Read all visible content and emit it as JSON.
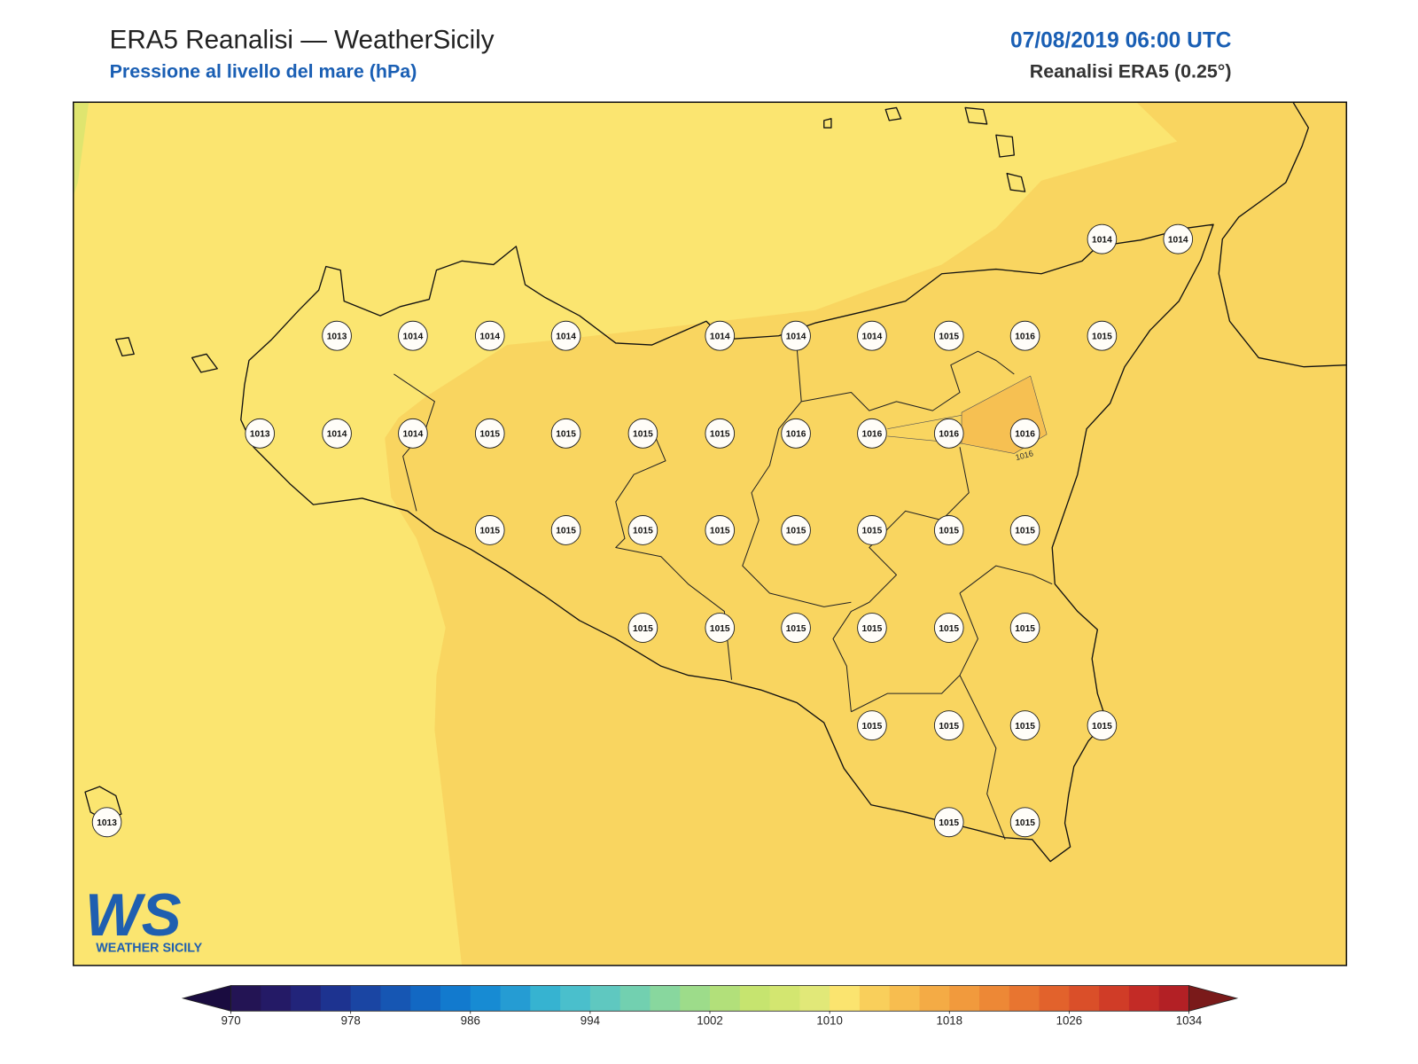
{
  "header": {
    "title": "ERA5 Reanalisi — WeatherSicily",
    "subtitle": "Pressione al livello del mare (hPa)",
    "datetime": "07/08/2019 06:00 UTC",
    "source": "Reanalisi ERA5 (0.25°)"
  },
  "stations": [
    1014,
    1014,
    1013,
    1014,
    1014,
    1014,
    1014,
    1014,
    1014,
    1015,
    1016,
    1015,
    1013,
    1014,
    1014,
    1015,
    1015,
    1015,
    1015,
    1016,
    1016,
    1016,
    1016,
    1015,
    1015,
    1015,
    1015,
    1015,
    1015,
    1015,
    1015,
    1015,
    1015,
    1015,
    1015,
    1015,
    1015,
    1015,
    1015,
    1015,
    1015,
    1013,
    1015,
    1015
  ],
  "contour_label": "1016",
  "logo": {
    "mark": "WS",
    "name": "WEATHER SICILY"
  },
  "colorbar": {
    "min": 970,
    "max": 1034,
    "ticks": [
      970,
      978,
      986,
      994,
      1002,
      1010,
      1018,
      1026,
      1034
    ],
    "under_color": "#1a0c40",
    "over_color": "#7a1a1a",
    "colors": [
      "#231454",
      "#241a66",
      "#22247a",
      "#1d3390",
      "#1a45a3",
      "#1656b3",
      "#1268c3",
      "#127ace",
      "#178bd3",
      "#259cd3",
      "#36b3d1",
      "#4abfcc",
      "#5fc8c0",
      "#72d0b0",
      "#88d79e",
      "#9ddc8a",
      "#b2e07a",
      "#c6e46f",
      "#d3e670",
      "#e1e878",
      "#fbe46f",
      "#f9cf5b",
      "#f7bd4f",
      "#f4ab45",
      "#f19a3d",
      "#ed8836",
      "#e87530",
      "#e2622c",
      "#da4f29",
      "#d03c27",
      "#c32b26",
      "#b32025"
    ]
  }
}
